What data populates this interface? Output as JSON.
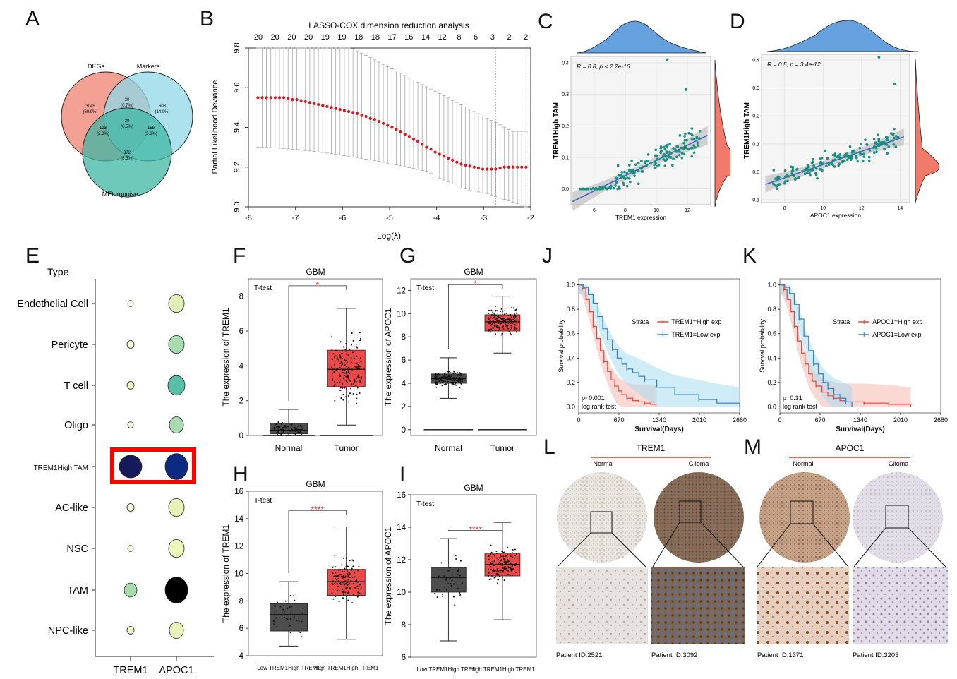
{
  "panel_labels": [
    "A",
    "B",
    "C",
    "D",
    "E",
    "F",
    "G",
    "H",
    "I",
    "J",
    "K",
    "L",
    "M"
  ],
  "venn": {
    "sets": [
      "DEGs",
      "Markers",
      "MEturquoise"
    ],
    "colors": [
      "#f08a7a",
      "#8fd8e8",
      "#3fb7a4"
    ],
    "regions": [
      {
        "count": "3045",
        "pct": "(69.9%)"
      },
      {
        "count": "30",
        "pct": "(0.7%)"
      },
      {
        "count": "608",
        "pct": "(14.0%)"
      },
      {
        "count": "20",
        "pct": "(0.5%)"
      },
      {
        "count": "123",
        "pct": "(2.8%)"
      },
      {
        "count": "159",
        "pct": "(3.6%)"
      },
      {
        "count": "372",
        "pct": "(8.5%)"
      }
    ]
  },
  "chart_data": [
    {
      "id": "B",
      "type": "line",
      "title": "LASSO-COX dimension reduction analysis",
      "xlabel": "Log(λ)",
      "ylabel": "Partial Likelihood Deviance",
      "xlim": [
        -8,
        -2
      ],
      "ylim": [
        9.0,
        9.8
      ],
      "xticks": [
        "-8",
        "-7",
        "-6",
        "-5",
        "-4",
        "-3",
        "-2"
      ],
      "yticks": [
        "9.0",
        "9.2",
        "9.4",
        "9.6",
        "9.8"
      ],
      "top_ticks": [
        "20",
        "20",
        "20",
        "20",
        "19",
        "19",
        "18",
        "18",
        "17",
        "16",
        "14",
        "12",
        "8",
        "6",
        "3",
        "2",
        "2",
        "2"
      ],
      "vlines": [
        -2.75,
        -2.1
      ],
      "x_range": [
        -7.8,
        -2.1
      ],
      "y_values": [
        9.55,
        9.55,
        9.55,
        9.55,
        9.55,
        9.55,
        9.55,
        9.545,
        9.54,
        9.54,
        9.535,
        9.53,
        9.525,
        9.52,
        9.515,
        9.51,
        9.505,
        9.5,
        9.495,
        9.49,
        9.485,
        9.48,
        9.475,
        9.47,
        9.46,
        9.455,
        9.445,
        9.44,
        9.43,
        9.42,
        9.41,
        9.4,
        9.39,
        9.38,
        9.365,
        9.355,
        9.34,
        9.33,
        9.315,
        9.3,
        9.29,
        9.275,
        9.265,
        9.255,
        9.245,
        9.235,
        9.225,
        9.215,
        9.21,
        9.205,
        9.2,
        9.195,
        9.19,
        9.19,
        9.19,
        9.19,
        9.195,
        9.2,
        9.2,
        9.2,
        9.2,
        9.2,
        9.2
      ],
      "error_upper": 9.8,
      "error_lower": 9.3,
      "error_lower_end": 9.0
    },
    {
      "id": "C",
      "type": "scatter",
      "annotation": "R = 0.8, p < 2.2e-16",
      "xlabel": "TREM1 expression",
      "ylabel": "TREM1High TAM",
      "xlim": [
        4.5,
        13.5
      ],
      "ylim": [
        -0.05,
        0.42
      ],
      "xticks": [
        "6",
        "8",
        "10",
        "12"
      ],
      "yticks": [
        "0.0",
        "0.1",
        "0.2",
        "0.3",
        "0.4"
      ],
      "fit": {
        "x0": 4.6,
        "y0": -0.04,
        "x1": 13.3,
        "y1": 0.17
      },
      "outliers": [
        {
          "x": 10.7,
          "y": 0.41
        },
        {
          "x": 11.9,
          "y": 0.315
        }
      ]
    },
    {
      "id": "D",
      "type": "scatter",
      "annotation": "R = 0.5, p = 3.4e-12",
      "xlabel": "APOC1 expression",
      "ylabel": "TREM1High TAM",
      "xlim": [
        6.8,
        14.5
      ],
      "ylim": [
        -0.11,
        0.42
      ],
      "xticks": [
        "8",
        "10",
        "12",
        "14"
      ],
      "yticks": [
        "-0.1",
        "0.0",
        "0.1",
        "0.2",
        "0.3",
        "0.4"
      ],
      "fit": {
        "x0": 7.0,
        "y0": -0.045,
        "x1": 14.2,
        "y1": 0.125
      },
      "outliers": [
        {
          "x": 12.9,
          "y": 0.41
        },
        {
          "x": 13.7,
          "y": 0.315
        }
      ]
    },
    {
      "id": "E",
      "type": "scatter",
      "title": "Type",
      "rows": [
        "Endothelial Cell",
        "Pericyte",
        "T cell",
        "Oligo",
        "TREM1High TAM",
        "AC-like",
        "NSC",
        "TAM",
        "NPC-like"
      ],
      "cols": [
        "TREM1",
        "APOC1"
      ],
      "trem1_sizes": [
        4,
        5,
        5,
        4,
        16,
        5,
        4,
        9,
        5
      ],
      "apoc1_sizes": [
        11,
        11,
        12,
        10,
        16,
        11,
        11,
        16,
        10
      ],
      "trem1_colors": [
        "#fbfbe0",
        "#fbfbe0",
        "#f3f6c8",
        "#fbfbe0",
        "#141a5a",
        "#fbfbe0",
        "#fbfbe0",
        "#a8dcae",
        "#f3f6c8"
      ],
      "apoc1_colors": [
        "#dff0b8",
        "#a8dcae",
        "#59bfa6",
        "#a8dcae",
        "#0c2a80",
        "#e6f3b4",
        "#eef6bc",
        "#000000",
        "#e8f3b8"
      ]
    },
    {
      "id": "F",
      "type": "bar",
      "title": "GBM",
      "test": "T-test",
      "sig": "*",
      "ylabel": "The expression of TREM1",
      "categories": [
        "Normal",
        "Tumor"
      ],
      "ylim": [
        0,
        9
      ],
      "yticks": [
        "0",
        "2",
        "4",
        "6",
        "8"
      ],
      "box": [
        {
          "q1": 0.1,
          "median": 0.3,
          "q3": 0.7,
          "lo": 0,
          "hi": 1.5
        },
        {
          "q1": 2.8,
          "median": 3.8,
          "q3": 4.9,
          "lo": 0.6,
          "hi": 7.3
        }
      ]
    },
    {
      "id": "G",
      "type": "bar",
      "title": "GBM",
      "test": "T-test",
      "sig": "*",
      "ylabel": "The expression of APOC1",
      "categories": [
        "Normal",
        "Tumor"
      ],
      "ylim": [
        -0.5,
        13
      ],
      "yticks": [
        "0",
        "2",
        "4",
        "6",
        "8",
        "10",
        "12"
      ],
      "box": [
        {
          "q1": 4.0,
          "median": 4.4,
          "q3": 4.8,
          "lo": 2.7,
          "hi": 6.2
        },
        {
          "q1": 8.5,
          "median": 9.3,
          "q3": 9.9,
          "lo": 6.6,
          "hi": 11.5
        }
      ]
    },
    {
      "id": "H",
      "type": "bar",
      "title": "GBM",
      "test": "T-test",
      "sig": "****",
      "ylabel": "The expression of TREM1",
      "categories": [
        "Low TREM1High TREM1",
        "High TREM1High TREM1"
      ],
      "ylim": [
        4,
        16
      ],
      "yticks": [
        "4",
        "6",
        "8",
        "10",
        "12",
        "14",
        "16"
      ],
      "box": [
        {
          "q1": 5.8,
          "median": 7.0,
          "q3": 7.8,
          "lo": 4.7,
          "hi": 9.4
        },
        {
          "q1": 8.4,
          "median": 9.4,
          "q3": 10.3,
          "lo": 5.2,
          "hi": 13.4
        }
      ]
    },
    {
      "id": "I",
      "type": "bar",
      "title": "GBM",
      "test": "T-test",
      "sig": "****",
      "ylabel": "The expression of APOC1",
      "categories": [
        "Low TREM1High TREM1",
        "High TREM1High TREM1"
      ],
      "ylim": [
        6,
        16
      ],
      "yticks": [
        "6",
        "8",
        "10",
        "12",
        "14",
        "16"
      ],
      "box": [
        {
          "q1": 10.0,
          "median": 10.9,
          "q3": 11.5,
          "lo": 7.0,
          "hi": 13.3
        },
        {
          "q1": 11.0,
          "median": 11.7,
          "q3": 12.4,
          "lo": 8.3,
          "hi": 14.3
        }
      ]
    },
    {
      "id": "J",
      "type": "line",
      "xlabel": "Survival(Days)",
      "ylabel": "Survival probability",
      "xlim": [
        0,
        2680
      ],
      "ylim": [
        -0.05,
        1.05
      ],
      "xticks": [
        "0",
        "670",
        "1340",
        "2010",
        "2680"
      ],
      "yticks": [
        "0.0",
        "0.2",
        "0.4",
        "0.6",
        "0.8",
        "1.0"
      ],
      "legend_title": "Strata",
      "series": [
        {
          "name": "TREM1=High exp",
          "color": "#e8473b",
          "x": [
            0,
            60,
            120,
            180,
            240,
            300,
            360,
            420,
            480,
            540,
            600,
            660,
            720,
            800,
            900,
            1000,
            1100,
            1200,
            1300
          ],
          "y": [
            1.0,
            0.97,
            0.88,
            0.78,
            0.66,
            0.56,
            0.46,
            0.37,
            0.29,
            0.22,
            0.17,
            0.13,
            0.1,
            0.07,
            0.05,
            0.04,
            0.03,
            0.02,
            0.02
          ]
        },
        {
          "name": "TREM1=Low exp",
          "color": "#2f7fc4",
          "x": [
            0,
            80,
            160,
            240,
            320,
            400,
            480,
            560,
            640,
            720,
            800,
            900,
            1000,
            1100,
            1300,
            1600,
            2000,
            2300,
            2680
          ],
          "y": [
            1.0,
            0.98,
            0.92,
            0.85,
            0.74,
            0.64,
            0.55,
            0.47,
            0.4,
            0.35,
            0.31,
            0.28,
            0.25,
            0.22,
            0.16,
            0.1,
            0.06,
            0.03,
            0.0
          ]
        }
      ],
      "annotation": "p<0.001",
      "test": "log rank test"
    },
    {
      "id": "K",
      "type": "line",
      "xlabel": "Survival(Days)",
      "ylabel": "Survival probability",
      "xlim": [
        0,
        2680
      ],
      "ylim": [
        -0.05,
        1.05
      ],
      "xticks": [
        "0",
        "670",
        "1340",
        "2010",
        "2680"
      ],
      "yticks": [
        "0.0",
        "0.2",
        "0.4",
        "0.6",
        "0.8",
        "1.0"
      ],
      "legend_title": "Strata",
      "series": [
        {
          "name": "APOC1=High exp",
          "color": "#e8473b",
          "x": [
            0,
            60,
            120,
            180,
            240,
            300,
            360,
            420,
            480,
            540,
            600,
            700,
            800,
            900,
            1000,
            1100,
            1400,
            1800,
            2180
          ],
          "y": [
            1.0,
            0.96,
            0.88,
            0.78,
            0.66,
            0.54,
            0.44,
            0.35,
            0.27,
            0.21,
            0.17,
            0.12,
            0.09,
            0.07,
            0.05,
            0.04,
            0.03,
            0.02,
            0.0
          ]
        },
        {
          "name": "APOC1=Low exp",
          "color": "#2f7fc4",
          "x": [
            0,
            80,
            160,
            240,
            320,
            400,
            480,
            560,
            640,
            720,
            800,
            900,
            1000,
            1100,
            1200
          ],
          "y": [
            1.0,
            0.98,
            0.93,
            0.84,
            0.72,
            0.58,
            0.46,
            0.35,
            0.27,
            0.2,
            0.15,
            0.1,
            0.07,
            0.04,
            0.0
          ]
        }
      ],
      "annotation": "p=0.31",
      "test": "log rank test"
    }
  ],
  "ihc": {
    "L": {
      "gene": "TREM1",
      "left": "Normal",
      "right": "Glioma",
      "left_id": "Patient ID:2521",
      "right_id": "Patient ID:3092"
    },
    "M": {
      "gene": "APOC1",
      "left": "Normal",
      "right": "Glioma",
      "left_id": "Patient ID:1371",
      "right_id": "Patient ID:3203"
    }
  }
}
